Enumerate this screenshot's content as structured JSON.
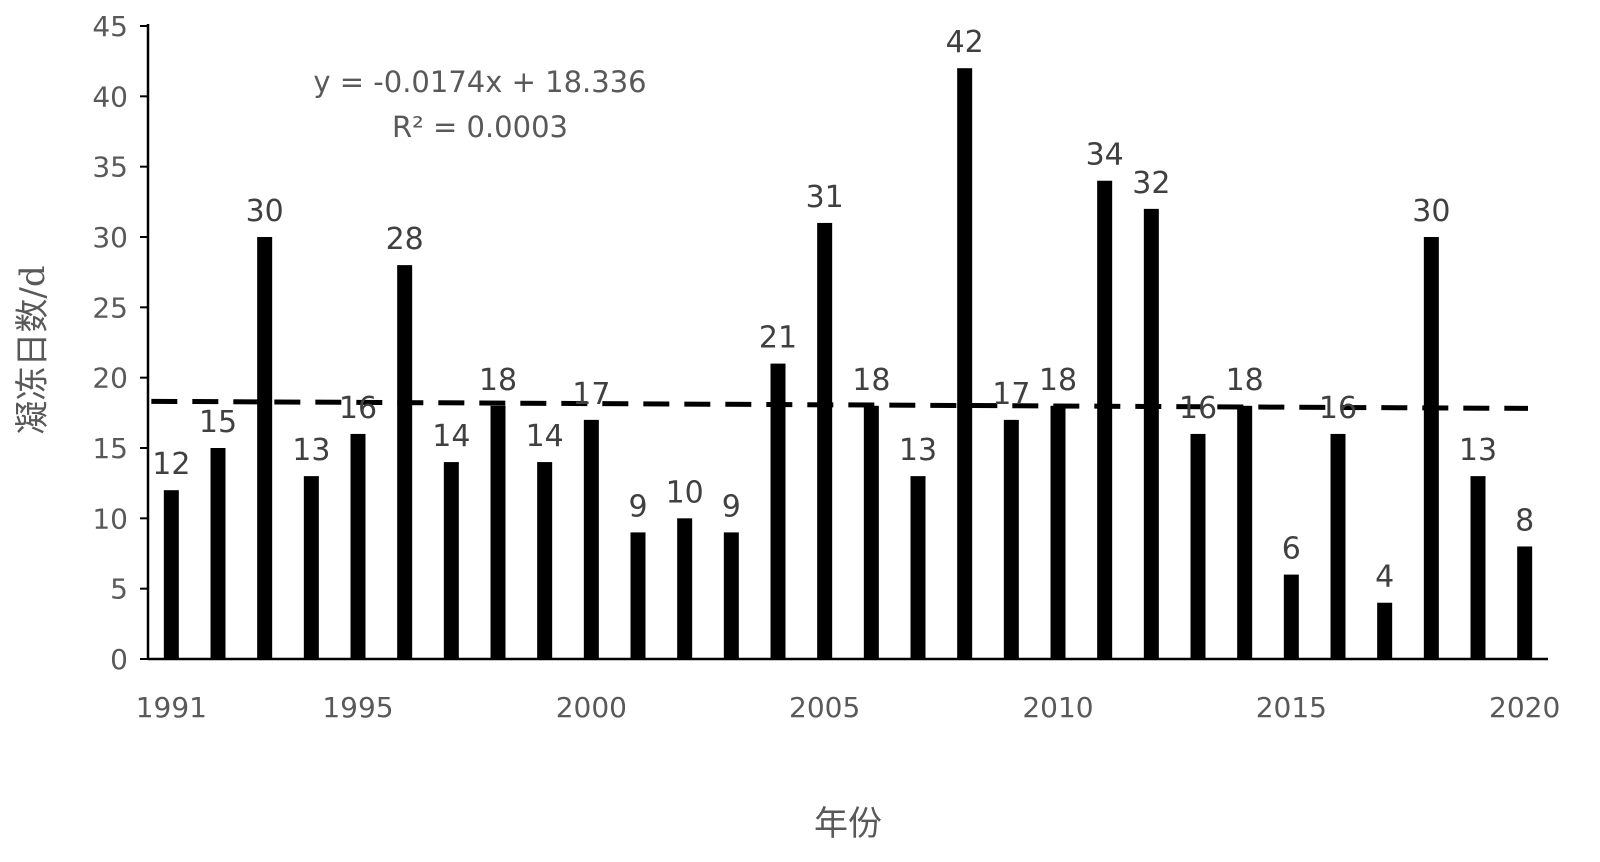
{
  "chart_data": {
    "type": "bar",
    "categories": [
      "1991",
      "1992",
      "1993",
      "1994",
      "1995",
      "1996",
      "1997",
      "1998",
      "1999",
      "2000",
      "2001",
      "2002",
      "2003",
      "2004",
      "2005",
      "2006",
      "2007",
      "2008",
      "2009",
      "2010",
      "2011",
      "2012",
      "2013",
      "2014",
      "2015",
      "2016",
      "2017",
      "2018",
      "2019",
      "2020"
    ],
    "values": [
      12,
      15,
      30,
      13,
      16,
      28,
      14,
      18,
      14,
      17,
      9,
      10,
      9,
      21,
      31,
      18,
      13,
      42,
      17,
      18,
      34,
      32,
      16,
      18,
      6,
      16,
      4,
      30,
      13,
      8
    ],
    "x_tick_labels": [
      "1991",
      "1995",
      "2000",
      "2005",
      "2010",
      "2015",
      "2020"
    ],
    "xlabel": "年份",
    "ylabel": "凝冻日数/d",
    "ylim": [
      0,
      45
    ],
    "y_ticks": [
      0,
      5,
      10,
      15,
      20,
      25,
      30,
      35,
      40,
      45
    ],
    "grid": false,
    "bar_color": "#000000",
    "trendline": {
      "type": "linear",
      "slope": -0.0174,
      "intercept": 18.336,
      "style": "dashed",
      "color": "#000000",
      "equation_text": "y = -0.0174x + 18.336",
      "r2_text": "R² = 0.0003"
    }
  }
}
